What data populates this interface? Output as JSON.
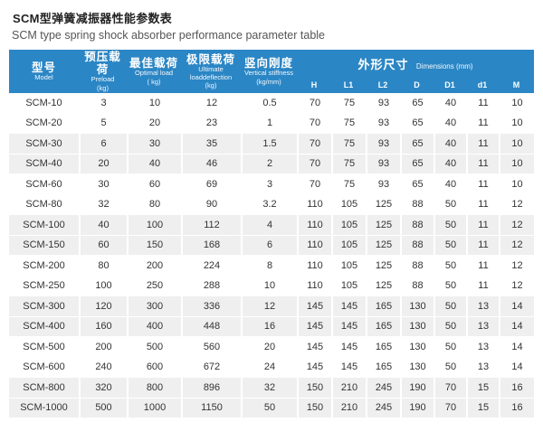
{
  "page": {
    "title_zh": "SCM型弹簧减振器性能参数表",
    "title_en": "SCM type spring shock absorber performance parameter table"
  },
  "colors": {
    "header_bg": "#2b86c5",
    "header_text": "#ffffff",
    "stripe_bg": "#efefef",
    "body_text": "#333333",
    "title_text": "#222222",
    "subtitle_text": "#555555"
  },
  "table": {
    "columns": [
      {
        "zh": "型号",
        "en": "Model",
        "unit": ""
      },
      {
        "zh": "预压载荷",
        "en": "Preload",
        "unit": "(kg)"
      },
      {
        "zh": "最佳载荷",
        "en": "Optimal load",
        "unit": "( kg)"
      },
      {
        "zh": "极限载荷",
        "en": "Ultimate loaddeflection",
        "unit": "(kg)"
      },
      {
        "zh": "竖向刚度",
        "en": "Vertical stiffness",
        "unit": "(kg/mm)"
      }
    ],
    "dims_group": {
      "zh": "外形尺寸",
      "en": "Dimensions (mm)"
    },
    "dim_columns": [
      "H",
      "L1",
      "L2",
      "D",
      "D1",
      "d1",
      "M"
    ],
    "rows": [
      {
        "model": "SCM-10",
        "values": [
          "3",
          "10",
          "12",
          "0.5",
          "70",
          "75",
          "93",
          "65",
          "40",
          "11",
          "10"
        ],
        "shaded": false
      },
      {
        "model": "SCM-20",
        "values": [
          "5",
          "20",
          "23",
          "1",
          "70",
          "75",
          "93",
          "65",
          "40",
          "11",
          "10"
        ],
        "shaded": false
      },
      {
        "model": "SCM-30",
        "values": [
          "6",
          "30",
          "35",
          "1.5",
          "70",
          "75",
          "93",
          "65",
          "40",
          "11",
          "10"
        ],
        "shaded": true
      },
      {
        "model": "SCM-40",
        "values": [
          "20",
          "40",
          "46",
          "2",
          "70",
          "75",
          "93",
          "65",
          "40",
          "11",
          "10"
        ],
        "shaded": true
      },
      {
        "model": "SCM-60",
        "values": [
          "30",
          "60",
          "69",
          "3",
          "70",
          "75",
          "93",
          "65",
          "40",
          "11",
          "10"
        ],
        "shaded": false
      },
      {
        "model": "SCM-80",
        "values": [
          "32",
          "80",
          "90",
          "3.2",
          "110",
          "105",
          "125",
          "88",
          "50",
          "11",
          "12"
        ],
        "shaded": false
      },
      {
        "model": "SCM-100",
        "values": [
          "40",
          "100",
          "112",
          "4",
          "110",
          "105",
          "125",
          "88",
          "50",
          "11",
          "12"
        ],
        "shaded": true
      },
      {
        "model": "SCM-150",
        "values": [
          "60",
          "150",
          "168",
          "6",
          "110",
          "105",
          "125",
          "88",
          "50",
          "11",
          "12"
        ],
        "shaded": true
      },
      {
        "model": "SCM-200",
        "values": [
          "80",
          "200",
          "224",
          "8",
          "110",
          "105",
          "125",
          "88",
          "50",
          "11",
          "12"
        ],
        "shaded": false
      },
      {
        "model": "SCM-250",
        "values": [
          "100",
          "250",
          "288",
          "10",
          "110",
          "105",
          "125",
          "88",
          "50",
          "11",
          "12"
        ],
        "shaded": false
      },
      {
        "model": "SCM-300",
        "values": [
          "120",
          "300",
          "336",
          "12",
          "145",
          "145",
          "165",
          "130",
          "50",
          "13",
          "14"
        ],
        "shaded": true
      },
      {
        "model": "SCM-400",
        "values": [
          "160",
          "400",
          "448",
          "16",
          "145",
          "145",
          "165",
          "130",
          "50",
          "13",
          "14"
        ],
        "shaded": true
      },
      {
        "model": "SCM-500",
        "values": [
          "200",
          "500",
          "560",
          "20",
          "145",
          "145",
          "165",
          "130",
          "50",
          "13",
          "14"
        ],
        "shaded": false
      },
      {
        "model": "SCM-600",
        "values": [
          "240",
          "600",
          "672",
          "24",
          "145",
          "145",
          "165",
          "130",
          "50",
          "13",
          "14"
        ],
        "shaded": false
      },
      {
        "model": "SCM-800",
        "values": [
          "320",
          "800",
          "896",
          "32",
          "150",
          "210",
          "245",
          "190",
          "70",
          "15",
          "16"
        ],
        "shaded": true
      },
      {
        "model": "SCM-1000",
        "values": [
          "500",
          "1000",
          "1150",
          "50",
          "150",
          "210",
          "245",
          "190",
          "70",
          "15",
          "16"
        ],
        "shaded": true
      }
    ]
  }
}
